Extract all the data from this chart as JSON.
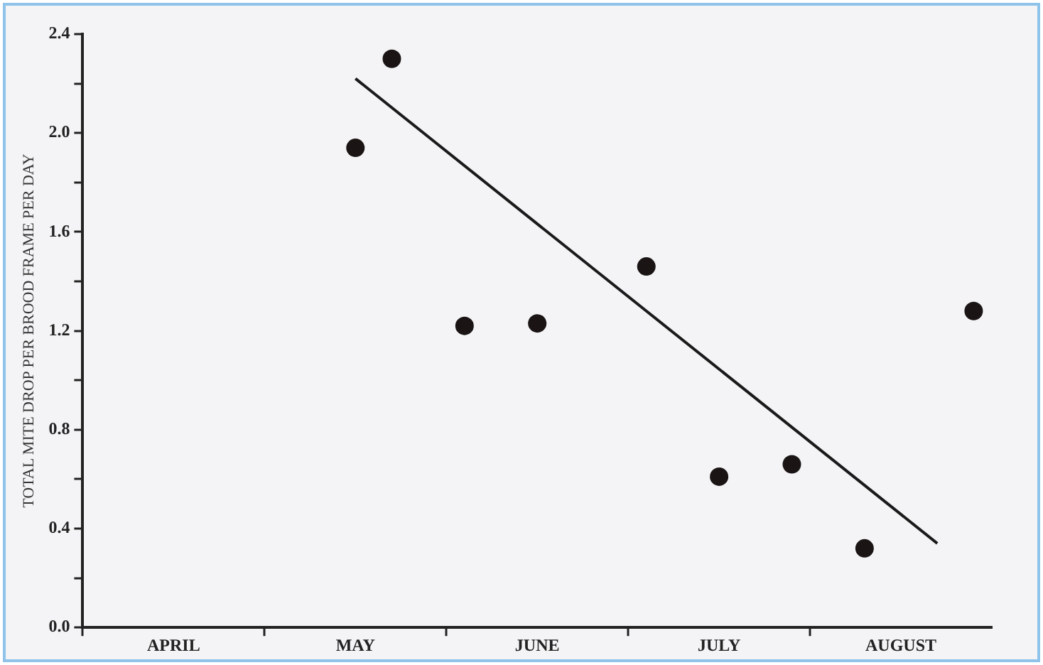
{
  "chart_data": {
    "type": "scatter",
    "ylabel": "TOTAL MITE DROP PER BROOD FRAME PER DAY",
    "categories": [
      null,
      null,
      "APRIL",
      null,
      null,
      null,
      null,
      "MAY",
      null,
      null,
      null,
      null,
      "JUNE",
      null,
      null,
      null,
      null,
      "JULY",
      null,
      null,
      null,
      null,
      "AUGUST",
      null,
      null
    ],
    "ylim": [
      0,
      2.4
    ],
    "yticks": [
      {
        "value": 0,
        "label": "0.0"
      },
      {
        "value": 0.2,
        "label": null
      },
      {
        "value": 0.4,
        "label": "0.4"
      },
      {
        "value": 0.6,
        "label": null
      },
      {
        "value": 0.8,
        "label": "0.8"
      },
      {
        "value": 1.0,
        "label": null
      },
      {
        "value": 1.2,
        "label": "1.2"
      },
      {
        "value": 1.4,
        "label": null
      },
      {
        "value": 1.6,
        "label": "1.6"
      },
      {
        "value": 1.8,
        "label": null
      },
      {
        "value": 2.0,
        "label": "2.0"
      },
      {
        "value": 2.2,
        "label": null
      },
      {
        "value": 2.4,
        "label": "2.4"
      }
    ],
    "grid": false,
    "legend": false,
    "marker": "circle",
    "series": [
      {
        "type": "scatter",
        "color": "#1a1414",
        "values": [
          null,
          null,
          null,
          null,
          null,
          null,
          null,
          1.94,
          2.3,
          null,
          1.22,
          null,
          1.23,
          null,
          null,
          1.46,
          null,
          0.61,
          null,
          0.66,
          null,
          0.32,
          null,
          null,
          1.28
        ]
      },
      {
        "type": "line",
        "color": "#1a1a1a",
        "marker": "none",
        "line_style": "solid",
        "values": [
          null,
          null,
          null,
          null,
          null,
          null,
          null,
          2.22,
          null,
          null,
          null,
          null,
          null,
          null,
          null,
          null,
          null,
          null,
          null,
          null,
          null,
          null,
          null,
          0.34,
          null
        ]
      }
    ]
  }
}
